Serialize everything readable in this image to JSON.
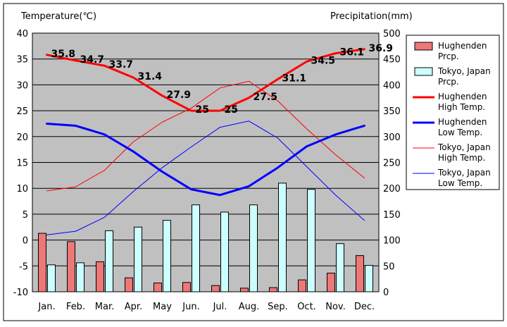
{
  "chart_data": {
    "type": "bar+line",
    "left_axis_title": "Temperature(℃)",
    "right_axis_title": "Precipitation(mm)",
    "categories": [
      "Jan.",
      "Feb.",
      "Mar.",
      "Apr.",
      "May",
      "Jun.",
      "Jul.",
      "Aug.",
      "Sep.",
      "Oct.",
      "Nov.",
      "Dec."
    ],
    "ylim_left": [
      -10,
      40
    ],
    "yticks_left": [
      -10,
      -5,
      0,
      5,
      10,
      15,
      20,
      25,
      30,
      35,
      40
    ],
    "ylim_right": [
      0,
      500
    ],
    "yticks_right": [
      0,
      50,
      100,
      150,
      200,
      250,
      300,
      350,
      400,
      450,
      500
    ],
    "grid": "horizontal",
    "legend_position": "right",
    "series": [
      {
        "name": "Hughenden Prcp.",
        "kind": "bar",
        "axis": "right",
        "color": "#ee7777",
        "values": [
          113,
          97,
          58,
          27,
          17,
          18,
          12,
          7,
          8,
          23,
          36,
          70
        ]
      },
      {
        "name": "Tokyo, Japan Prcp.",
        "kind": "bar",
        "axis": "right",
        "color": "#ccffff",
        "values": [
          52,
          56,
          118,
          125,
          138,
          168,
          154,
          168,
          210,
          198,
          93,
          51
        ]
      },
      {
        "name": "Hughenden High Temp.",
        "kind": "line",
        "axis": "left",
        "color": "#ff0000",
        "width": 3,
        "values": [
          35.8,
          34.7,
          33.7,
          31.4,
          27.9,
          25,
          25,
          27.5,
          31.1,
          34.5,
          36.1,
          36.9
        ],
        "labels": [
          "35.8",
          "34.7",
          "33.7",
          "31.4",
          "27.9",
          "25",
          "25",
          "27.5",
          "31.1",
          "34.5",
          "36.1",
          "36.9"
        ]
      },
      {
        "name": "Hughenden Low Temp.",
        "kind": "line",
        "axis": "left",
        "color": "#0000ff",
        "width": 3,
        "values": [
          22.5,
          22.1,
          20.4,
          17.1,
          13.2,
          9.8,
          8.7,
          10.4,
          14.0,
          18.1,
          20.4,
          22.1
        ]
      },
      {
        "name": "Tokyo, Japan High Temp.",
        "kind": "line",
        "axis": "left",
        "color": "#ff0000",
        "width": 1,
        "values": [
          9.5,
          10.3,
          13.5,
          19.0,
          22.8,
          25.5,
          29.4,
          30.7,
          26.9,
          21.5,
          16.5,
          12.0
        ]
      },
      {
        "name": "Tokyo, Japan Low Temp.",
        "kind": "line",
        "axis": "left",
        "color": "#0000ff",
        "width": 1,
        "values": [
          1.0,
          1.7,
          4.4,
          9.4,
          14.0,
          18.0,
          21.8,
          23.0,
          19.7,
          14.2,
          8.7,
          3.8
        ]
      }
    ],
    "legend": [
      {
        "label": [
          "Hughenden",
          "Prcp."
        ],
        "series": 0
      },
      {
        "label": [
          "Tokyo, Japan",
          "Prcp."
        ],
        "series": 1
      },
      {
        "label": [
          "Hughenden",
          "High Temp."
        ],
        "series": 2
      },
      {
        "label": [
          "Hughenden",
          "Low Temp."
        ],
        "series": 3
      },
      {
        "label": [
          "Tokyo, Japan",
          "High Temp."
        ],
        "series": 4
      },
      {
        "label": [
          "Tokyo, Japan",
          "Low Temp."
        ],
        "series": 5
      }
    ]
  }
}
